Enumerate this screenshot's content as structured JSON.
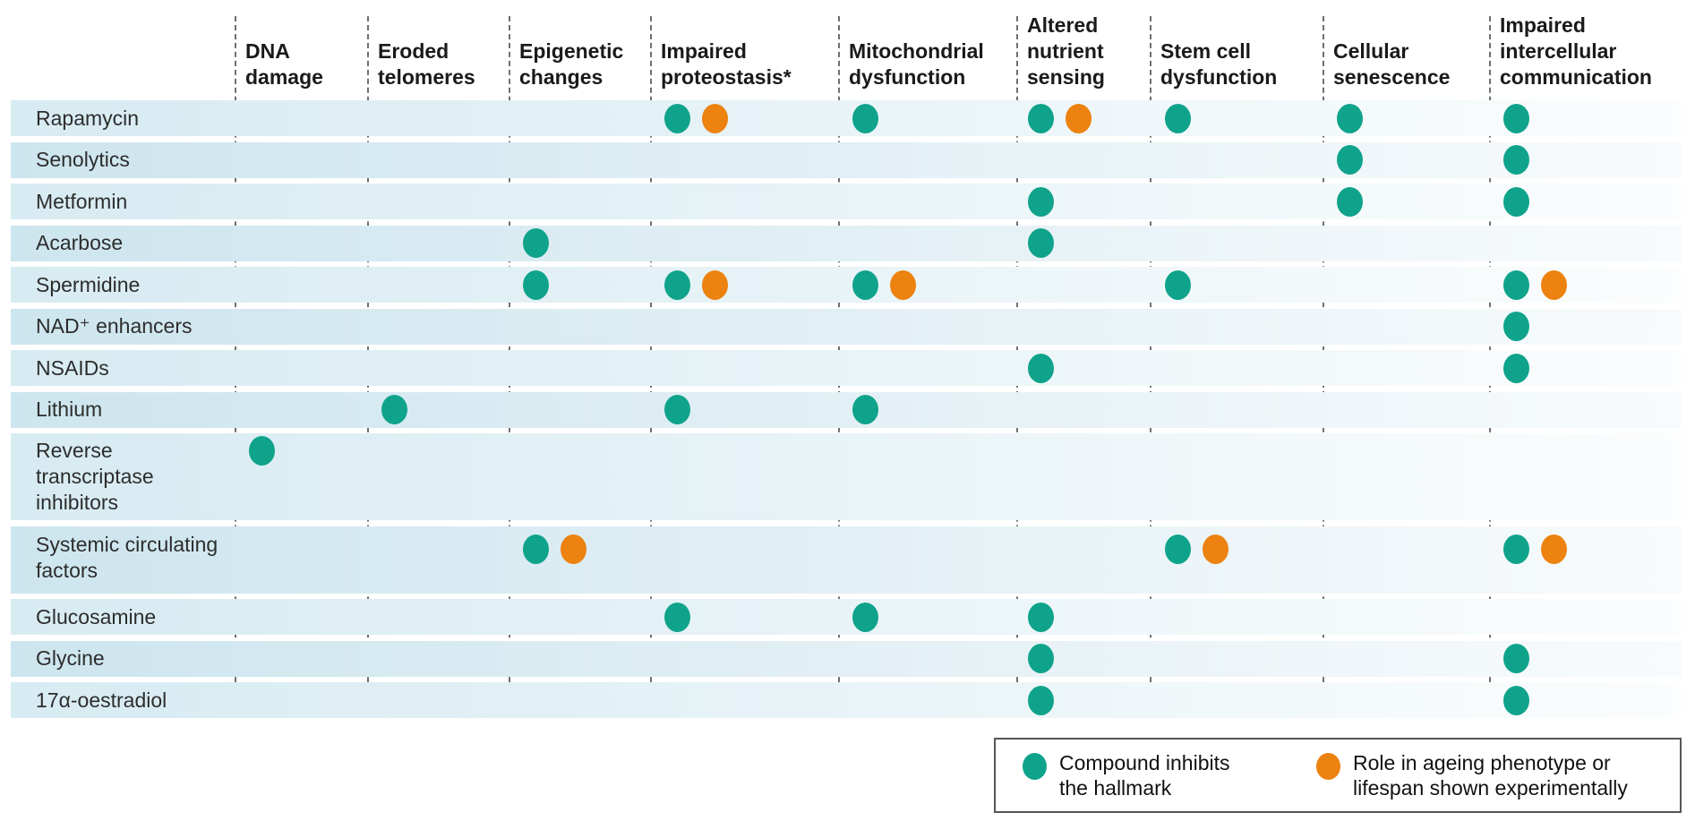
{
  "colors": {
    "inhibits_dot_teal": "#0fa38b",
    "experimental_dot_orange": "#ec820f",
    "row_band_left": "#d2e8f0",
    "row_band_right": "#fbfdfe",
    "divider_gray": "#6f6f6f",
    "legend_border": "#55565a"
  },
  "legend": {
    "teal_label": "Compound inhibits the hallmark",
    "orange_label": "Role in ageing phenotype or lifespan shown experimentally"
  },
  "chart_data": {
    "type": "table",
    "subtype": "dot-matrix",
    "title": "",
    "value_encoding": {
      "T": "teal dot — compound inhibits the hallmark",
      "TO": "teal dot + orange dot — compound inhibits the hallmark and role in ageing phenotype or lifespan shown experimentally",
      "": "no dot"
    },
    "columns": [
      "DNA damage",
      "Eroded telomeres",
      "Epigenetic changes",
      "Impaired proteostasis*",
      "Mitochondrial dysfunction",
      "Altered nutrient sensing",
      "Stem cell dysfunction",
      "Cellular senescence",
      "Impaired intercellular communication"
    ],
    "rows": [
      {
        "label": "Rapamycin",
        "cells": [
          "",
          "",
          "",
          "TO",
          "T",
          "TO",
          "T",
          "T",
          "T"
        ]
      },
      {
        "label": "Senolytics",
        "cells": [
          "",
          "",
          "",
          "",
          "",
          "",
          "",
          "T",
          "T"
        ]
      },
      {
        "label": "Metformin",
        "cells": [
          "",
          "",
          "",
          "",
          "",
          "T",
          "",
          "T",
          "T"
        ]
      },
      {
        "label": "Acarbose",
        "cells": [
          "",
          "",
          "T",
          "",
          "",
          "T",
          "",
          "",
          ""
        ]
      },
      {
        "label": "Spermidine",
        "cells": [
          "",
          "",
          "T",
          "TO",
          "TO",
          "",
          "T",
          "",
          "TO"
        ]
      },
      {
        "label": "NAD⁺ enhancers",
        "cells": [
          "",
          "",
          "",
          "",
          "",
          "",
          "",
          "",
          "T"
        ]
      },
      {
        "label": "NSAIDs",
        "cells": [
          "",
          "",
          "",
          "",
          "",
          "T",
          "",
          "",
          "T"
        ]
      },
      {
        "label": "Lithium",
        "cells": [
          "",
          "T",
          "",
          "T",
          "T",
          "",
          "",
          "",
          ""
        ]
      },
      {
        "label": "Reverse transcriptase inhibitors",
        "cells": [
          "T",
          "",
          "",
          "",
          "",
          "",
          "",
          "",
          ""
        ]
      },
      {
        "label": "Systemic circulating factors",
        "cells": [
          "",
          "",
          "TO",
          "",
          "",
          "",
          "TO",
          "",
          "TO"
        ]
      },
      {
        "label": "Glucosamine",
        "cells": [
          "",
          "",
          "",
          "T",
          "T",
          "T",
          "",
          "",
          ""
        ]
      },
      {
        "label": "Glycine",
        "cells": [
          "",
          "",
          "",
          "",
          "",
          "T",
          "",
          "",
          "T"
        ]
      },
      {
        "label": "17α-oestradiol",
        "cells": [
          "",
          "",
          "",
          "",
          "",
          "T",
          "",
          "",
          "T"
        ]
      }
    ]
  }
}
